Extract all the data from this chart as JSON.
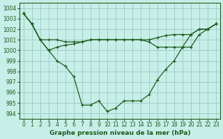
{
  "xlabel": "Graphe pression niveau de la mer (hPa)",
  "background_color": "#c8eee8",
  "grid_color": "#a0ccc8",
  "line_color": "#1a5c1a",
  "ylim": [
    993.5,
    1004.5
  ],
  "xlim": [
    -0.5,
    23.5
  ],
  "yticks": [
    994,
    995,
    996,
    997,
    998,
    999,
    1000,
    1001,
    1002,
    1003,
    1004
  ],
  "xticks": [
    0,
    1,
    2,
    3,
    4,
    5,
    6,
    7,
    8,
    9,
    10,
    11,
    12,
    13,
    14,
    15,
    16,
    17,
    18,
    19,
    20,
    21,
    22,
    23
  ],
  "series1": [
    1003.5,
    1002.5,
    1001.0,
    1000.0,
    999.0,
    998.5,
    997.5,
    994.8,
    994.8,
    995.2,
    994.2,
    994.5,
    995.2,
    995.2,
    995.2,
    995.8,
    997.2,
    998.2,
    999.0,
    1000.3,
    1001.5,
    1002.0,
    1002.0,
    1002.5
  ],
  "series2": [
    1003.5,
    1002.5,
    1001.0,
    1001.0,
    1001.0,
    1000.8,
    1000.8,
    1000.8,
    1001.0,
    1001.0,
    1001.0,
    1001.0,
    1001.0,
    1001.0,
    1001.0,
    1001.0,
    1001.2,
    1001.4,
    1001.5,
    1001.5,
    1001.5,
    1002.0,
    1002.0,
    1002.5
  ],
  "series3": [
    1003.5,
    1002.5,
    1001.0,
    1000.0,
    1000.3,
    1000.5,
    1000.6,
    1000.8,
    1001.0,
    1001.0,
    1001.0,
    1001.0,
    1001.0,
    1001.0,
    1001.0,
    1000.8,
    1000.3,
    1000.3,
    1000.3,
    1000.3,
    1000.3,
    1001.5,
    1002.0,
    1002.5
  ]
}
